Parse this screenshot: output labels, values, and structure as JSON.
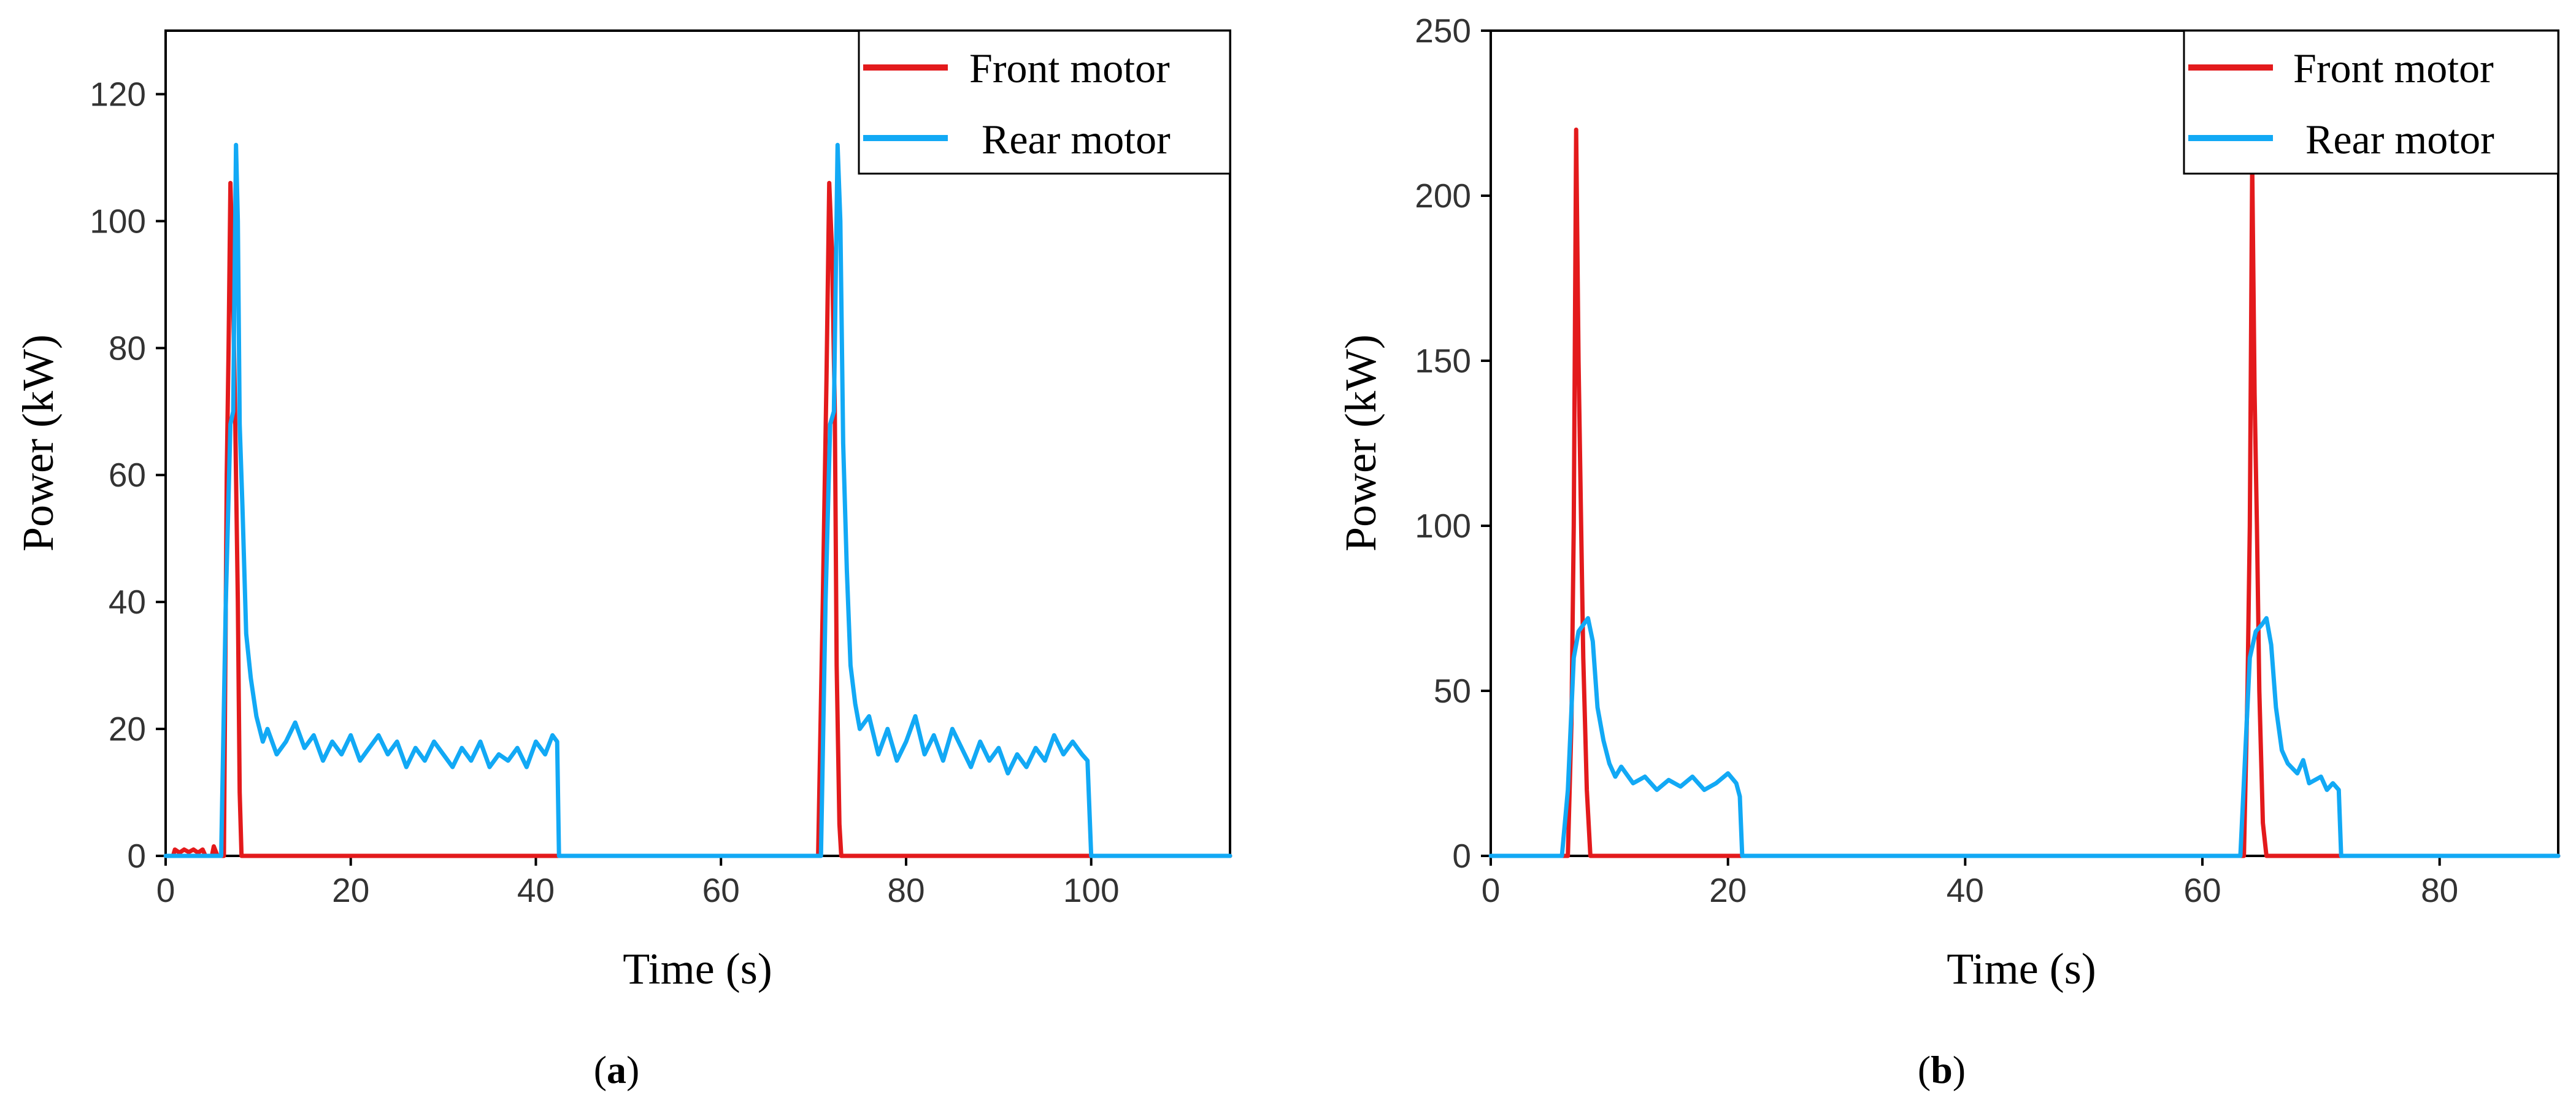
{
  "colors": {
    "front": "#e31a1c",
    "rear": "#12a9f5",
    "axis": "#000000"
  },
  "chart_data": [
    {
      "type": "line",
      "panel_label": "a",
      "xlabel": "Time (s)",
      "ylabel": "Power (kW)",
      "xlim": [
        0,
        115
      ],
      "ylim": [
        0,
        130
      ],
      "xticks": [
        0,
        20,
        40,
        60,
        80,
        100
      ],
      "yticks": [
        0,
        20,
        40,
        60,
        80,
        100,
        120
      ],
      "legend": {
        "position": "top-right",
        "entries": [
          "Front motor",
          "Rear motor"
        ]
      },
      "series": [
        {
          "name": "Front motor",
          "points": [
            [
              0,
              0
            ],
            [
              0.8,
              0
            ],
            [
              1,
              1
            ],
            [
              1.5,
              0.5
            ],
            [
              2,
              1
            ],
            [
              2.5,
              0.6
            ],
            [
              3,
              1
            ],
            [
              3.5,
              0.5
            ],
            [
              4,
              1
            ],
            [
              4.3,
              0
            ],
            [
              5,
              0
            ],
            [
              5.2,
              1.5
            ],
            [
              5.6,
              0
            ],
            [
              6.3,
              0
            ],
            [
              6.6,
              60
            ],
            [
              6.8,
              80
            ],
            [
              7,
              106
            ],
            [
              7.2,
              95
            ],
            [
              7.5,
              70
            ],
            [
              7.8,
              40
            ],
            [
              8,
              10
            ],
            [
              8.2,
              0
            ],
            [
              70.5,
              0
            ],
            [
              71,
              40
            ],
            [
              71.4,
              75
            ],
            [
              71.7,
              106
            ],
            [
              72,
              95
            ],
            [
              72.3,
              70
            ],
            [
              72.5,
              30
            ],
            [
              72.8,
              5
            ],
            [
              73,
              0
            ],
            [
              115,
              0
            ]
          ]
        },
        {
          "name": "Rear motor",
          "points": [
            [
              0,
              0
            ],
            [
              6,
              0
            ],
            [
              6.5,
              40
            ],
            [
              7,
              68
            ],
            [
              7.3,
              70
            ],
            [
              7.6,
              112
            ],
            [
              7.8,
              100
            ],
            [
              8,
              68
            ],
            [
              8.3,
              55
            ],
            [
              8.7,
              35
            ],
            [
              9.2,
              28
            ],
            [
              9.8,
              22
            ],
            [
              10.5,
              18
            ],
            [
              11,
              20
            ],
            [
              12,
              16
            ],
            [
              13,
              18
            ],
            [
              14,
              21
            ],
            [
              15,
              17
            ],
            [
              16,
              19
            ],
            [
              17,
              15
            ],
            [
              18,
              18
            ],
            [
              19,
              16
            ],
            [
              20,
              19
            ],
            [
              21,
              15
            ],
            [
              22,
              17
            ],
            [
              23,
              19
            ],
            [
              24,
              16
            ],
            [
              25,
              18
            ],
            [
              26,
              14
            ],
            [
              27,
              17
            ],
            [
              28,
              15
            ],
            [
              29,
              18
            ],
            [
              30,
              16
            ],
            [
              31,
              14
            ],
            [
              32,
              17
            ],
            [
              33,
              15
            ],
            [
              34,
              18
            ],
            [
              35,
              14
            ],
            [
              36,
              16
            ],
            [
              37,
              15
            ],
            [
              38,
              17
            ],
            [
              39,
              14
            ],
            [
              40,
              18
            ],
            [
              41,
              16
            ],
            [
              41.8,
              19
            ],
            [
              42.3,
              18
            ],
            [
              42.5,
              0
            ],
            [
              70.8,
              0
            ],
            [
              71.3,
              40
            ],
            [
              71.8,
              68
            ],
            [
              72.2,
              70
            ],
            [
              72.6,
              112
            ],
            [
              72.9,
              100
            ],
            [
              73.2,
              65
            ],
            [
              73.6,
              45
            ],
            [
              74,
              30
            ],
            [
              74.5,
              24
            ],
            [
              75,
              20
            ],
            [
              76,
              22
            ],
            [
              77,
              16
            ],
            [
              78,
              20
            ],
            [
              79,
              15
            ],
            [
              80,
              18
            ],
            [
              81,
              22
            ],
            [
              82,
              16
            ],
            [
              83,
              19
            ],
            [
              84,
              15
            ],
            [
              85,
              20
            ],
            [
              86,
              17
            ],
            [
              87,
              14
            ],
            [
              88,
              18
            ],
            [
              89,
              15
            ],
            [
              90,
              17
            ],
            [
              91,
              13
            ],
            [
              92,
              16
            ],
            [
              93,
              14
            ],
            [
              94,
              17
            ],
            [
              95,
              15
            ],
            [
              96,
              19
            ],
            [
              97,
              16
            ],
            [
              98,
              18
            ],
            [
              99,
              16
            ],
            [
              99.6,
              15
            ],
            [
              100,
              0
            ],
            [
              115,
              0
            ]
          ]
        }
      ]
    },
    {
      "type": "line",
      "panel_label": "b",
      "xlabel": "Time (s)",
      "ylabel": "Power (kW)",
      "xlim": [
        0,
        90
      ],
      "ylim": [
        0,
        250
      ],
      "xticks": [
        0,
        20,
        40,
        60,
        80
      ],
      "yticks": [
        0,
        50,
        100,
        150,
        200,
        250
      ],
      "legend": {
        "position": "top-right",
        "entries": [
          "Front motor",
          "Rear motor"
        ]
      },
      "series": [
        {
          "name": "Front motor",
          "points": [
            [
              0,
              0
            ],
            [
              6.5,
              0
            ],
            [
              6.8,
              40
            ],
            [
              7,
              100
            ],
            [
              7.2,
              220
            ],
            [
              7.4,
              150
            ],
            [
              7.6,
              105
            ],
            [
              7.8,
              60
            ],
            [
              8.1,
              20
            ],
            [
              8.4,
              0
            ],
            [
              63.5,
              0
            ],
            [
              63.8,
              50
            ],
            [
              64,
              100
            ],
            [
              64.2,
              210
            ],
            [
              64.4,
              140
            ],
            [
              64.6,
              100
            ],
            [
              64.8,
              50
            ],
            [
              65.1,
              10
            ],
            [
              65.4,
              0
            ],
            [
              90,
              0
            ]
          ]
        },
        {
          "name": "Rear motor",
          "points": [
            [
              0,
              0
            ],
            [
              6,
              0
            ],
            [
              6.5,
              20
            ],
            [
              7,
              60
            ],
            [
              7.4,
              68
            ],
            [
              7.8,
              70
            ],
            [
              8.2,
              72
            ],
            [
              8.6,
              65
            ],
            [
              9,
              45
            ],
            [
              9.5,
              35
            ],
            [
              10,
              28
            ],
            [
              10.5,
              24
            ],
            [
              11,
              27
            ],
            [
              12,
              22
            ],
            [
              13,
              24
            ],
            [
              14,
              20
            ],
            [
              15,
              23
            ],
            [
              16,
              21
            ],
            [
              17,
              24
            ],
            [
              18,
              20
            ],
            [
              19,
              22
            ],
            [
              20,
              25
            ],
            [
              20.7,
              22
            ],
            [
              21,
              18
            ],
            [
              21.2,
              0
            ],
            [
              63.2,
              0
            ],
            [
              63.6,
              30
            ],
            [
              64,
              60
            ],
            [
              64.5,
              68
            ],
            [
              65,
              70
            ],
            [
              65.4,
              72
            ],
            [
              65.8,
              64
            ],
            [
              66.2,
              45
            ],
            [
              66.7,
              32
            ],
            [
              67.2,
              28
            ],
            [
              68,
              25
            ],
            [
              68.5,
              29
            ],
            [
              69,
              22
            ],
            [
              70,
              24
            ],
            [
              70.5,
              20
            ],
            [
              71,
              22
            ],
            [
              71.5,
              20
            ],
            [
              71.7,
              0
            ],
            [
              90,
              0
            ]
          ]
        }
      ]
    }
  ]
}
